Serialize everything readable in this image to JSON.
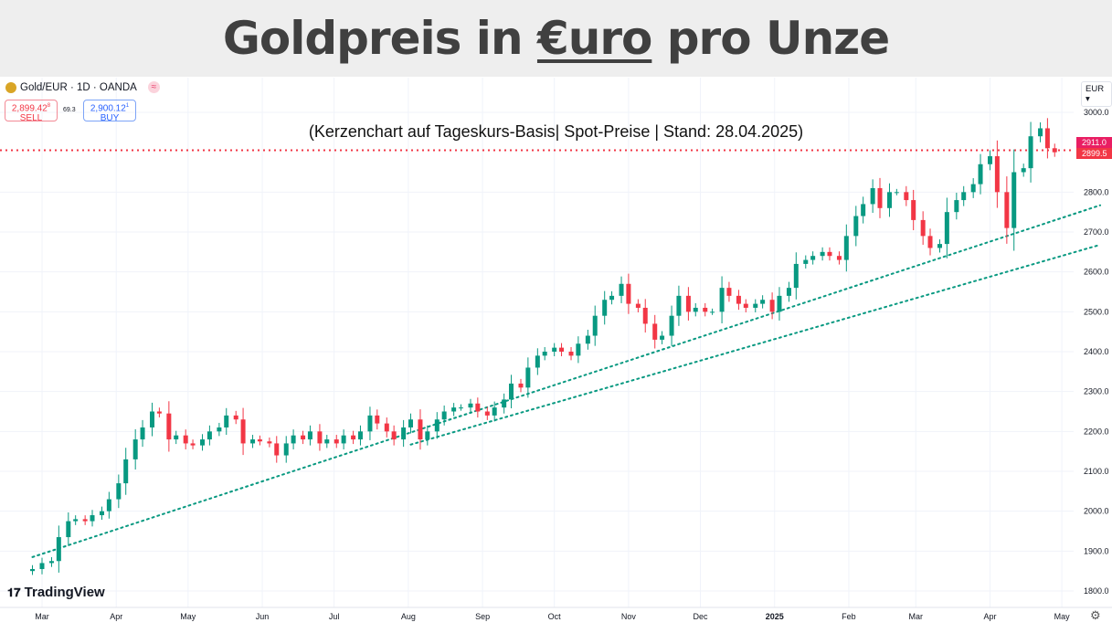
{
  "header": {
    "title_prefix": "Goldpreis in ",
    "title_underlined": "€uro",
    "title_suffix": " pro Unze"
  },
  "subtitle": "(Kerzenchart auf Tageskurs-Basis| Spot-Preise | Stand: 28.04.2025)",
  "symbol": {
    "label": "Gold/EUR · 1D · OANDA",
    "icon": "gold-coin-icon"
  },
  "sell": {
    "price": "2,899.42",
    "sup": "8",
    "label": "SELL"
  },
  "buy": {
    "price": "2,900.12",
    "sup": "1",
    "label": "BUY"
  },
  "spread": "69.3",
  "currency_select": "EUR",
  "branding": "TradingView",
  "colors": {
    "up": "#089981",
    "down": "#f23645",
    "trend": "#089981",
    "price_line": "#f23645"
  },
  "chart_data": {
    "type": "candlestick",
    "ylim": [
      1800,
      3000
    ],
    "yticks": [
      {
        "v": 3000,
        "l": "3000.0"
      },
      {
        "v": 2800,
        "l": "2800.0"
      },
      {
        "v": 2700,
        "l": "2700.0"
      },
      {
        "v": 2600,
        "l": "2600.0"
      },
      {
        "v": 2500,
        "l": "2500.0"
      },
      {
        "v": 2400,
        "l": "2400.0"
      },
      {
        "v": 2300,
        "l": "2300.0"
      },
      {
        "v": 2200,
        "l": "2200.0"
      },
      {
        "v": 2100,
        "l": "2100.0"
      },
      {
        "v": 2000,
        "l": "2000.0"
      },
      {
        "v": 1900,
        "l": "1900.0"
      },
      {
        "v": 1800,
        "l": "1800.0"
      }
    ],
    "xticks": [
      {
        "d": "2024-03-01",
        "l": "Mar"
      },
      {
        "d": "2024-04-01",
        "l": "Apr"
      },
      {
        "d": "2024-05-01",
        "l": "May"
      },
      {
        "d": "2024-06-01",
        "l": "Jun"
      },
      {
        "d": "2024-07-01",
        "l": "Jul"
      },
      {
        "d": "2024-08-01",
        "l": "Aug"
      },
      {
        "d": "2024-09-01",
        "l": "Sep"
      },
      {
        "d": "2024-10-01",
        "l": "Oct"
      },
      {
        "d": "2024-11-01",
        "l": "Nov"
      },
      {
        "d": "2024-12-01",
        "l": "Dec"
      },
      {
        "d": "2025-01-01",
        "l": "2025"
      },
      {
        "d": "2025-02-01",
        "l": "Feb"
      },
      {
        "d": "2025-03-01",
        "l": "Mar"
      },
      {
        "d": "2025-04-01",
        "l": "Apr"
      },
      {
        "d": "2025-05-01",
        "l": "May"
      }
    ],
    "price_labels": [
      {
        "v": 2911.0,
        "l": "2911.0"
      },
      {
        "v": 2899.5,
        "l": "2899.5"
      }
    ],
    "price_line": 2905,
    "trendlines": [
      [
        [
          "2024-02-26",
          1885
        ],
        [
          "2025-05-17",
          2767
        ]
      ],
      [
        [
          "2024-08-02",
          2167
        ],
        [
          "2025-05-17",
          2668
        ]
      ]
    ],
    "closes": [
      [
        "2024-02-26",
        1855
      ],
      [
        "2024-03-01",
        1870
      ],
      [
        "2024-03-05",
        1875
      ],
      [
        "2024-03-08",
        1935
      ],
      [
        "2024-03-12",
        1975
      ],
      [
        "2024-03-15",
        1980
      ],
      [
        "2024-03-19",
        1975
      ],
      [
        "2024-03-22",
        1990
      ],
      [
        "2024-03-26",
        2000
      ],
      [
        "2024-03-29",
        2030
      ],
      [
        "2024-04-02",
        2070
      ],
      [
        "2024-04-05",
        2130
      ],
      [
        "2024-04-09",
        2180
      ],
      [
        "2024-04-12",
        2210
      ],
      [
        "2024-04-16",
        2250
      ],
      [
        "2024-04-19",
        2245
      ],
      [
        "2024-04-23",
        2180
      ],
      [
        "2024-04-26",
        2190
      ],
      [
        "2024-04-30",
        2170
      ],
      [
        "2024-05-03",
        2165
      ],
      [
        "2024-05-07",
        2180
      ],
      [
        "2024-05-10",
        2200
      ],
      [
        "2024-05-14",
        2210
      ],
      [
        "2024-05-17",
        2240
      ],
      [
        "2024-05-21",
        2230
      ],
      [
        "2024-05-24",
        2170
      ],
      [
        "2024-05-28",
        2180
      ],
      [
        "2024-05-31",
        2175
      ],
      [
        "2024-06-04",
        2170
      ],
      [
        "2024-06-07",
        2140
      ],
      [
        "2024-06-11",
        2170
      ],
      [
        "2024-06-14",
        2190
      ],
      [
        "2024-06-18",
        2180
      ],
      [
        "2024-06-21",
        2200
      ],
      [
        "2024-06-25",
        2170
      ],
      [
        "2024-06-28",
        2180
      ],
      [
        "2024-07-02",
        2170
      ],
      [
        "2024-07-05",
        2190
      ],
      [
        "2024-07-09",
        2180
      ],
      [
        "2024-07-12",
        2200
      ],
      [
        "2024-07-16",
        2240
      ],
      [
        "2024-07-19",
        2220
      ],
      [
        "2024-07-23",
        2200
      ],
      [
        "2024-07-26",
        2180
      ],
      [
        "2024-07-30",
        2210
      ],
      [
        "2024-08-02",
        2230
      ],
      [
        "2024-08-06",
        2180
      ],
      [
        "2024-08-09",
        2200
      ],
      [
        "2024-08-13",
        2230
      ],
      [
        "2024-08-16",
        2250
      ],
      [
        "2024-08-20",
        2260
      ],
      [
        "2024-08-23",
        2260
      ],
      [
        "2024-08-27",
        2270
      ],
      [
        "2024-08-30",
        2250
      ],
      [
        "2024-09-03",
        2240
      ],
      [
        "2024-09-06",
        2260
      ],
      [
        "2024-09-10",
        2280
      ],
      [
        "2024-09-13",
        2320
      ],
      [
        "2024-09-17",
        2310
      ],
      [
        "2024-09-20",
        2360
      ],
      [
        "2024-09-24",
        2390
      ],
      [
        "2024-09-27",
        2400
      ],
      [
        "2024-10-01",
        2410
      ],
      [
        "2024-10-04",
        2400
      ],
      [
        "2024-10-08",
        2390
      ],
      [
        "2024-10-11",
        2420
      ],
      [
        "2024-10-15",
        2440
      ],
      [
        "2024-10-18",
        2490
      ],
      [
        "2024-10-22",
        2530
      ],
      [
        "2024-10-25",
        2540
      ],
      [
        "2024-10-29",
        2570
      ],
      [
        "2024-11-01",
        2520
      ],
      [
        "2024-11-05",
        2510
      ],
      [
        "2024-11-08",
        2470
      ],
      [
        "2024-11-12",
        2430
      ],
      [
        "2024-11-15",
        2440
      ],
      [
        "2024-11-19",
        2490
      ],
      [
        "2024-11-22",
        2540
      ],
      [
        "2024-11-26",
        2500
      ],
      [
        "2024-11-29",
        2510
      ],
      [
        "2024-12-03",
        2500
      ],
      [
        "2024-12-06",
        2500
      ],
      [
        "2024-12-10",
        2560
      ],
      [
        "2024-12-13",
        2540
      ],
      [
        "2024-12-17",
        2520
      ],
      [
        "2024-12-20",
        2510
      ],
      [
        "2024-12-24",
        2520
      ],
      [
        "2024-12-27",
        2530
      ],
      [
        "2024-12-31",
        2500
      ],
      [
        "2025-01-03",
        2540
      ],
      [
        "2025-01-07",
        2560
      ],
      [
        "2025-01-10",
        2620
      ],
      [
        "2025-01-14",
        2630
      ],
      [
        "2025-01-17",
        2640
      ],
      [
        "2025-01-21",
        2650
      ],
      [
        "2025-01-24",
        2640
      ],
      [
        "2025-01-28",
        2630
      ],
      [
        "2025-01-31",
        2690
      ],
      [
        "2025-02-04",
        2740
      ],
      [
        "2025-02-07",
        2770
      ],
      [
        "2025-02-11",
        2810
      ],
      [
        "2025-02-14",
        2760
      ],
      [
        "2025-02-18",
        2800
      ],
      [
        "2025-02-21",
        2800
      ],
      [
        "2025-02-25",
        2780
      ],
      [
        "2025-02-28",
        2730
      ],
      [
        "2025-03-04",
        2690
      ],
      [
        "2025-03-07",
        2660
      ],
      [
        "2025-03-11",
        2670
      ],
      [
        "2025-03-14",
        2750
      ],
      [
        "2025-03-18",
        2780
      ],
      [
        "2025-03-21",
        2800
      ],
      [
        "2025-03-25",
        2820
      ],
      [
        "2025-03-28",
        2870
      ],
      [
        "2025-04-01",
        2890
      ],
      [
        "2025-04-04",
        2800
      ],
      [
        "2025-04-08",
        2710
      ],
      [
        "2025-04-11",
        2850
      ],
      [
        "2025-04-15",
        2860
      ],
      [
        "2025-04-18",
        2940
      ],
      [
        "2025-04-22",
        2960
      ],
      [
        "2025-04-25",
        2910
      ],
      [
        "2025-04-28",
        2900
      ]
    ]
  }
}
